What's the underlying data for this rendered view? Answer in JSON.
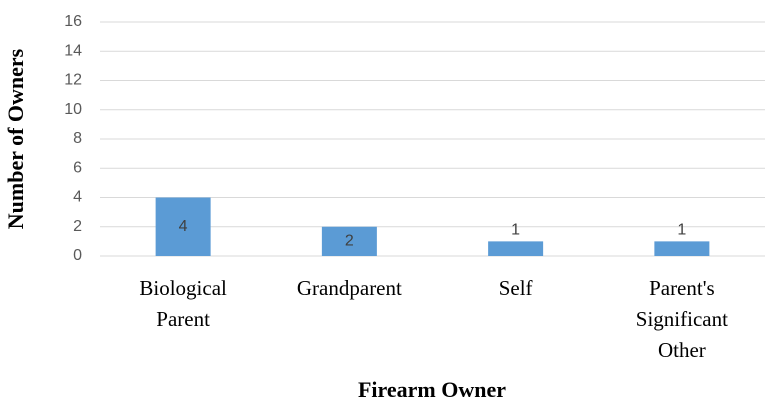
{
  "chart_data": {
    "type": "bar",
    "categories": [
      "Biological Parent",
      "Grandparent",
      "Self",
      "Parent's Significant Other"
    ],
    "values": [
      4,
      2,
      1,
      1
    ],
    "color": "#5b9bd5",
    "ylim": [
      0,
      16
    ],
    "yticks": [
      0,
      2,
      4,
      6,
      8,
      10,
      12,
      14,
      16
    ],
    "grid": true,
    "xlabel": "Firearm Owner",
    "ylabel": "Number of Owners"
  }
}
